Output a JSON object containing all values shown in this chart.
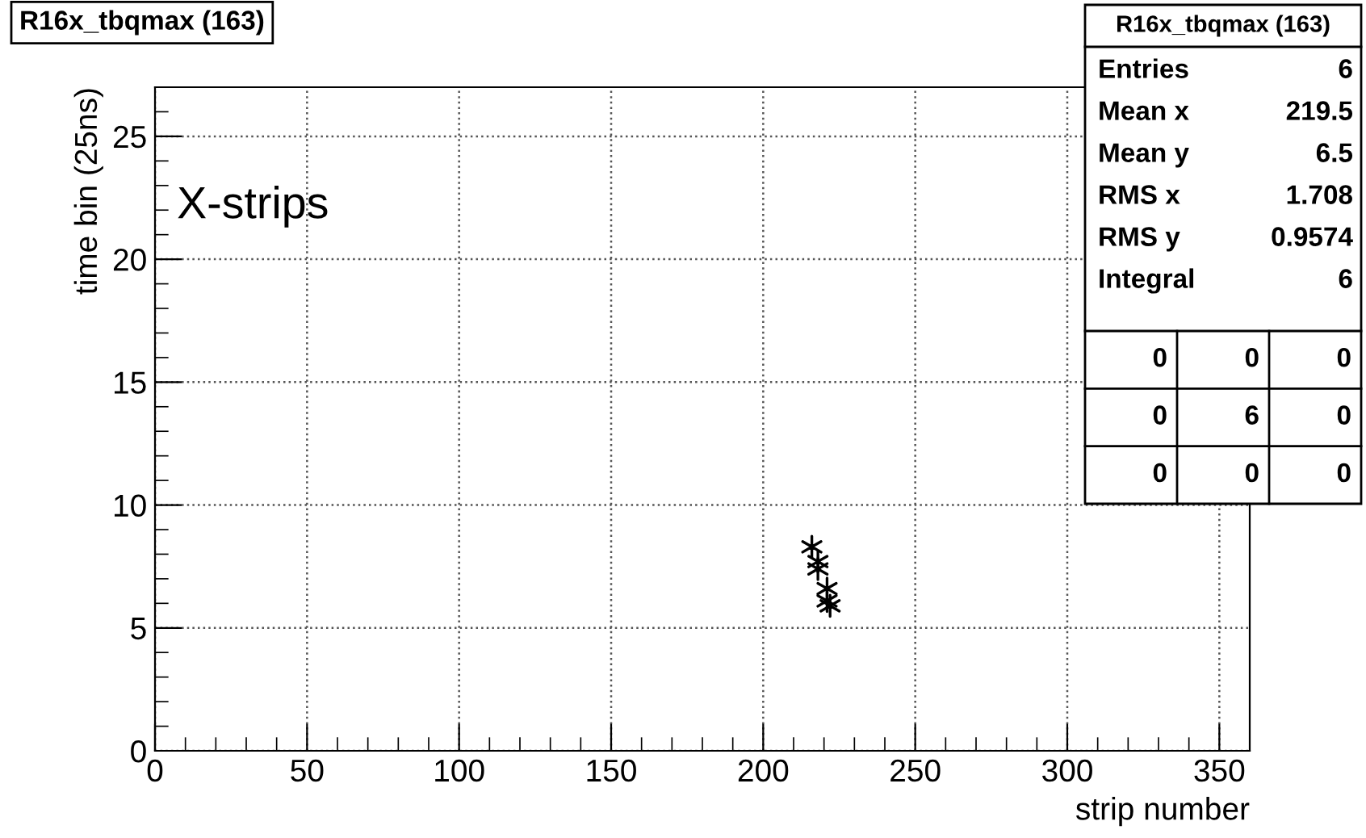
{
  "chart_data": {
    "type": "scatter",
    "title": "R16x_tbqmax (163)",
    "xlabel": "strip number",
    "ylabel": "time bin (25ns)",
    "x": [
      216,
      218,
      218,
      221,
      221,
      222
    ],
    "values": [
      8.3,
      7.7,
      7.4,
      6.6,
      6.1,
      5.9
    ],
    "color": "#000000",
    "marker": "cross",
    "xlim": [
      0,
      360
    ],
    "ylim": [
      0,
      27
    ],
    "xticks": [
      0,
      50,
      100,
      150,
      200,
      250,
      300,
      350
    ],
    "yticks": [
      0,
      5,
      10,
      15,
      20,
      25
    ],
    "grid": true,
    "annotations": [
      "X-strips",
      "R16x_tbqmax (163)",
      "Entries",
      "6",
      "Mean x",
      "219.5",
      "Mean y",
      "6.5",
      "RMS x",
      "1.708",
      "RMS y",
      "0.9574",
      "Integral",
      "6",
      "0",
      "0",
      "0",
      "0",
      "6",
      "0",
      "0",
      "0",
      "0"
    ]
  }
}
